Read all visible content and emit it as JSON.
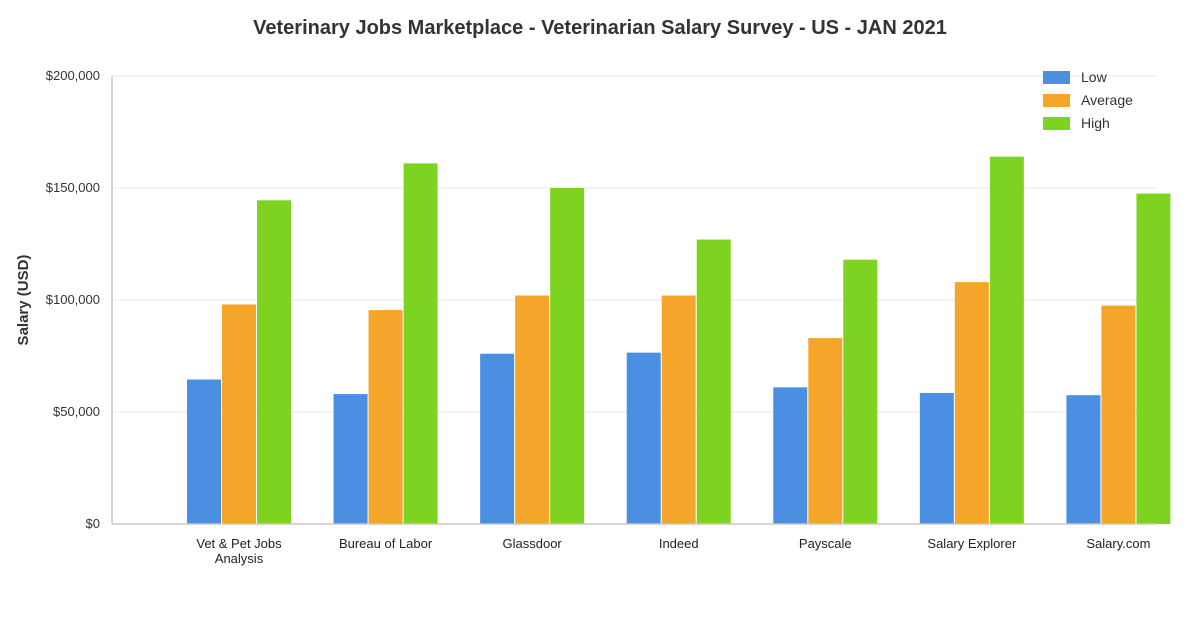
{
  "chart_data": {
    "type": "bar",
    "title": "Veterinary Jobs Marketplace - Veterinarian Salary Survey - US - JAN 2021",
    "xlabel": "",
    "ylabel": "Salary (USD)",
    "ylim": [
      0,
      200000
    ],
    "yticks": [
      {
        "value": 0,
        "label": "$0"
      },
      {
        "value": 50000,
        "label": "$50,000"
      },
      {
        "value": 100000,
        "label": "$100,000"
      },
      {
        "value": 150000,
        "label": "$150,000"
      },
      {
        "value": 200000,
        "label": "$200,000"
      }
    ],
    "categories": [
      [
        "Vet & Pet Jobs",
        "Analysis"
      ],
      [
        "Bureau of Labor"
      ],
      [
        "Glassdoor"
      ],
      [
        "Indeed"
      ],
      [
        "Payscale"
      ],
      [
        "Salary Explorer"
      ],
      [
        "Salary.com"
      ]
    ],
    "series": [
      {
        "name": "Low",
        "color": "#4a8fe2",
        "values": [
          64500,
          58000,
          76000,
          76500,
          61000,
          58500,
          57500
        ]
      },
      {
        "name": "Average",
        "color": "#f5a52a",
        "values": [
          98000,
          95500,
          102000,
          102000,
          83000,
          108000,
          97500
        ]
      },
      {
        "name": "High",
        "color": "#7ed321",
        "values": [
          144500,
          161000,
          150000,
          127000,
          118000,
          164000,
          147500
        ]
      }
    ],
    "grid": true,
    "legend_position": "top-right"
  }
}
